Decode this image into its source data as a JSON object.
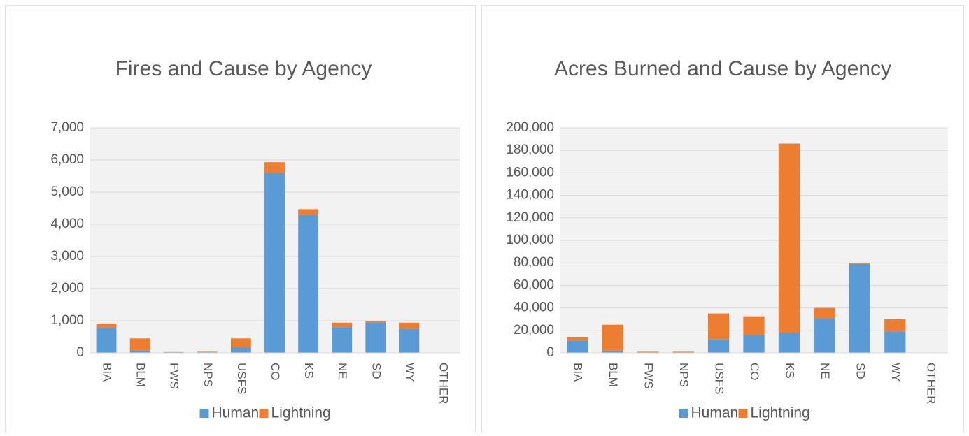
{
  "chart_data": [
    {
      "type": "stacked-bar",
      "title": "Fires and Cause by Agency",
      "categories": [
        "BIA",
        "BLM",
        "FWS",
        "NPS",
        "USFS",
        "CO",
        "KS",
        "NE",
        "SD",
        "WY",
        "OTHER"
      ],
      "series": [
        {
          "name": "Human",
          "color": "#5b9bd5",
          "values": [
            780,
            80,
            20,
            20,
            180,
            5600,
            4300,
            800,
            950,
            740,
            0
          ]
        },
        {
          "name": "Lightning",
          "color": "#ed7d31",
          "values": [
            130,
            370,
            5,
            15,
            270,
            330,
            170,
            140,
            40,
            200,
            0
          ]
        }
      ],
      "ylim": [
        0,
        7000
      ],
      "yticks": [
        0,
        {
          "value": 1000,
          "label": "1,000"
        },
        {
          "value": 2000,
          "label": "2,000"
        },
        {
          "value": 3000,
          "label": "3,000"
        },
        {
          "value": 4000,
          "label": "4,000"
        },
        {
          "value": 5000,
          "label": "5,000"
        },
        {
          "value": 6000,
          "label": "6,000"
        },
        {
          "value": 7000,
          "label": "7,000"
        }
      ],
      "grid": true,
      "legend": "bottom"
    },
    {
      "type": "stacked-bar",
      "title": "Acres Burned and Cause by Agency",
      "categories": [
        "BIA",
        "BLM",
        "FWS",
        "NPS",
        "USFS",
        "CO",
        "KS",
        "NE",
        "SD",
        "WY",
        "OTHER"
      ],
      "series": [
        {
          "name": "Human",
          "color": "#5b9bd5",
          "values": [
            11000,
            2000,
            200,
            200,
            12000,
            16000,
            18000,
            31000,
            79000,
            19000,
            0
          ]
        },
        {
          "name": "Lightning",
          "color": "#ed7d31",
          "values": [
            3000,
            23000,
            800,
            800,
            23000,
            16500,
            168000,
            9000,
            1000,
            11000,
            0
          ]
        }
      ],
      "ylim": [
        0,
        200000
      ],
      "yticks": [
        0,
        {
          "value": 20000,
          "label": "20,000"
        },
        {
          "value": 40000,
          "label": "40,000"
        },
        {
          "value": 60000,
          "label": "60,000"
        },
        {
          "value": 80000,
          "label": "80,000"
        },
        {
          "value": 100000,
          "label": "100,000"
        },
        {
          "value": 120000,
          "label": "120,000"
        },
        {
          "value": 140000,
          "label": "140,000"
        },
        {
          "value": 160000,
          "label": "160,000"
        },
        {
          "value": 180000,
          "label": "180,000"
        },
        {
          "value": 200000,
          "label": "200,000"
        }
      ],
      "grid": true,
      "legend": "bottom"
    }
  ]
}
